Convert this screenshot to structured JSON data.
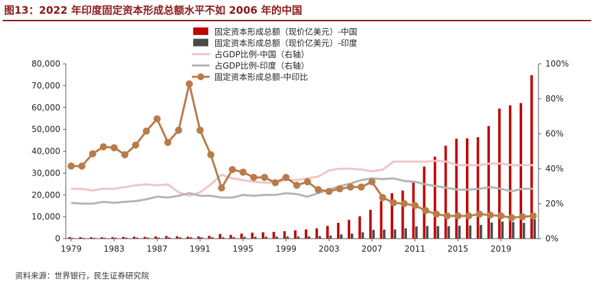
{
  "figure": {
    "title": "图13：2022 年印度固定资本形成总额水平不如 2006 年的中国",
    "source": "资料来源：世界银行，民生证券研究院"
  },
  "chart_data": {
    "type": "bar+line",
    "x": [
      1979,
      1980,
      1981,
      1982,
      1983,
      1984,
      1985,
      1986,
      1987,
      1988,
      1989,
      1990,
      1991,
      1992,
      1993,
      1994,
      1995,
      1996,
      1997,
      1998,
      1999,
      2000,
      2001,
      2002,
      2003,
      2004,
      2005,
      2006,
      2007,
      2008,
      2009,
      2010,
      2011,
      2012,
      2013,
      2014,
      2015,
      2016,
      2017,
      2018,
      2019,
      2020,
      2021,
      2022
    ],
    "x_tick_labels": [
      "1979",
      "1983",
      "1987",
      "1991",
      "1995",
      "1999",
      "2003",
      "2007",
      "2011",
      "2015",
      "2019"
    ],
    "left_axis": {
      "min": 0,
      "max": 80000,
      "ticks": [
        "0",
        "10,000",
        "20,000",
        "30,000",
        "40,000",
        "50,000",
        "60,000",
        "70,000",
        "80,000"
      ]
    },
    "right_axis": {
      "min": 0,
      "max": 100,
      "ticks": [
        "0%",
        "20%",
        "40%",
        "60%",
        "80%",
        "100%"
      ]
    },
    "series": [
      {
        "name": "固定资本形成总额（现价亿美元）-中国",
        "kind": "bar",
        "axis": "left",
        "color": "#c00000",
        "values": [
          700,
          650,
          600,
          620,
          700,
          800,
          900,
          800,
          1000,
          1200,
          1100,
          900,
          1000,
          1300,
          2100,
          1700,
          2300,
          2700,
          2900,
          3100,
          3400,
          3800,
          4200,
          4700,
          5800,
          7200,
          8600,
          10200,
          13200,
          17200,
          20800,
          22000,
          26500,
          33000,
          37500,
          42500,
          45700,
          45900,
          46400,
          51500,
          59500,
          61000,
          62000,
          74800
        ]
      },
      {
        "name": "固定资本形成总额（现价亿美元）-印度",
        "kind": "bar",
        "axis": "left",
        "color": "#4a4a4a",
        "values": [
          300,
          350,
          350,
          350,
          400,
          400,
          450,
          450,
          500,
          550,
          600,
          650,
          600,
          600,
          600,
          650,
          800,
          850,
          900,
          900,
          1000,
          1000,
          1050,
          1150,
          1400,
          1900,
          2300,
          2900,
          4000,
          4100,
          4200,
          4700,
          5600,
          5800,
          5700,
          5700,
          5900,
          6000,
          6300,
          7400,
          7800,
          7600,
          7200,
          8900
        ]
      },
      {
        "name": "占GDP比例-中国（右轴）",
        "kind": "line",
        "axis": "right",
        "color": "#f0c4c4",
        "values": [
          28.5,
          28.5,
          27.5,
          28.5,
          28.5,
          29.5,
          30.5,
          31,
          30.5,
          31,
          26.5,
          24.5,
          26.5,
          31,
          36.5,
          34.5,
          33.5,
          32.5,
          32,
          32,
          33.5,
          33.5,
          34.5,
          35.5,
          39,
          40,
          40,
          39.5,
          38.5,
          39.5,
          44,
          44,
          44,
          44,
          44.5,
          44,
          42,
          42,
          42,
          43,
          43,
          42,
          42,
          42
        ]
      },
      {
        "name": "占GDP比例-印度（右轴）",
        "kind": "line",
        "axis": "right",
        "color": "#b4b4b4",
        "values": [
          20.5,
          20,
          20,
          21,
          20.5,
          21,
          21.5,
          22.5,
          24,
          23.5,
          24.5,
          26,
          24.5,
          24.5,
          23.5,
          23.5,
          25,
          24.5,
          25,
          25,
          26,
          25.5,
          24,
          26,
          28,
          30,
          31.5,
          33.5,
          34.5,
          34,
          34.5,
          33,
          32.5,
          31,
          30,
          29,
          28,
          28,
          28.5,
          29.5,
          28.5,
          27,
          28.5,
          28.5
        ]
      },
      {
        "name": "固定资本形成总额-中印比",
        "kind": "line-markers",
        "axis": "right",
        "color": "#b87c4a",
        "values": [
          41.5,
          41.5,
          48.5,
          52.5,
          52,
          48,
          53.5,
          61.5,
          68.5,
          55,
          62,
          88.5,
          62,
          48,
          29,
          39.5,
          38,
          35,
          35,
          32,
          35,
          30.5,
          32.5,
          28,
          27,
          28.5,
          29.5,
          29.5,
          32.5,
          23.5,
          20.5,
          20,
          19,
          16,
          14,
          13,
          13,
          13,
          14,
          13.5,
          13,
          12,
          12.5,
          13
        ]
      }
    ]
  }
}
